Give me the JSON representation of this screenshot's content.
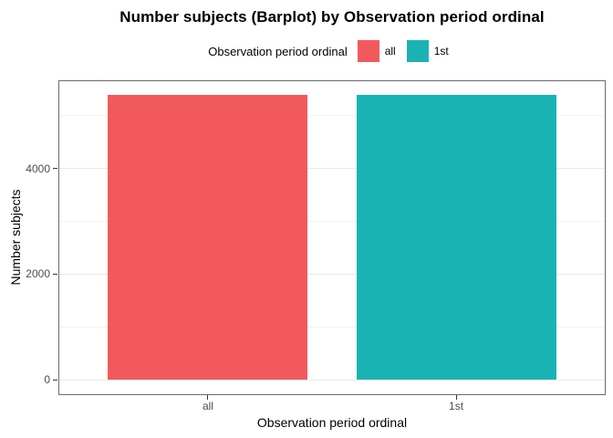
{
  "chart_data": {
    "type": "bar",
    "title": "Number subjects (Barplot) by Observation period ordinal",
    "categories": [
      "all",
      "1st"
    ],
    "series": [
      {
        "name": "all",
        "value": 5400,
        "color": "#f2595c"
      },
      {
        "name": "1st",
        "value": 5400,
        "color": "#1ab3b4"
      }
    ],
    "xlabel": "Observation period ordinal",
    "ylabel": "Number subjects",
    "ylim": [
      -270,
      5650
    ],
    "yticks": [
      {
        "value": 0,
        "label": "0"
      },
      {
        "value": 2000,
        "label": "2000"
      },
      {
        "value": 4000,
        "label": "4000"
      }
    ],
    "yticks_minor": [
      1000,
      3000,
      5000
    ],
    "legend": {
      "title": "Observation period ordinal",
      "position": "top"
    },
    "grid": true
  },
  "colors": {
    "background": "#ffffff",
    "panel_border": "#6b6b6b",
    "grid_major": "#e8e8e8",
    "grid_minor": "#f2f2f2",
    "tick_mark": "#333333",
    "tick_label": "#4d4d4d"
  }
}
